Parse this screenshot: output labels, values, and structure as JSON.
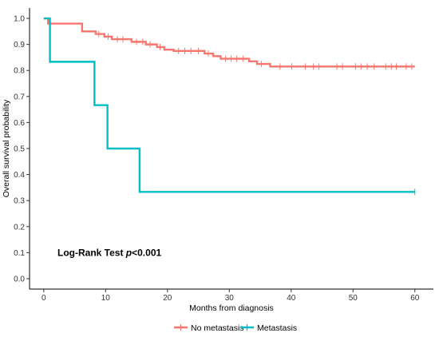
{
  "chart_data": {
    "type": "line",
    "subtype": "kaplan-meier-step",
    "ylabel": "Overall survival probability",
    "xlabel": "Months from diagnosis",
    "x_ticks": [
      0,
      10,
      20,
      30,
      40,
      50,
      60
    ],
    "y_ticks": [
      "0.0",
      "0.1",
      "0.2",
      "0.3",
      "0.4",
      "0.5",
      "0.6",
      "0.7",
      "0.8",
      "0.9",
      "1.0"
    ],
    "xlim": [
      -2.3,
      63
    ],
    "ylim": [
      -0.04,
      1.04
    ],
    "grid": false,
    "annotation": {
      "prefix": "Log-Rank Test ",
      "italic": "p",
      "suffix": "<0.001"
    },
    "legend_position": "bottom",
    "series": [
      {
        "name": "No metastasis",
        "color": "#F8766D",
        "steps": [
          [
            0,
            1.0
          ],
          [
            0.7,
            0.98
          ],
          [
            6.2,
            0.95
          ],
          [
            8.4,
            0.94
          ],
          [
            9.8,
            0.93
          ],
          [
            11.0,
            0.92
          ],
          [
            14.2,
            0.91
          ],
          [
            16.5,
            0.9
          ],
          [
            18.3,
            0.89
          ],
          [
            19.5,
            0.88
          ],
          [
            21.0,
            0.875
          ],
          [
            26.0,
            0.865
          ],
          [
            27.4,
            0.855
          ],
          [
            28.6,
            0.845
          ],
          [
            33.2,
            0.835
          ],
          [
            34.5,
            0.825
          ],
          [
            36.6,
            0.815
          ],
          [
            60,
            0.815
          ]
        ],
        "censored": [
          [
            8.9,
            0.94
          ],
          [
            10.4,
            0.93
          ],
          [
            11.9,
            0.92
          ],
          [
            12.8,
            0.92
          ],
          [
            15.0,
            0.91
          ],
          [
            16.0,
            0.91
          ],
          [
            17.2,
            0.9
          ],
          [
            18.8,
            0.89
          ],
          [
            21.8,
            0.875
          ],
          [
            22.8,
            0.875
          ],
          [
            23.8,
            0.875
          ],
          [
            25.0,
            0.875
          ],
          [
            26.6,
            0.865
          ],
          [
            29.4,
            0.845
          ],
          [
            30.3,
            0.845
          ],
          [
            31.2,
            0.845
          ],
          [
            32.2,
            0.845
          ],
          [
            35.2,
            0.825
          ],
          [
            38.2,
            0.815
          ],
          [
            40.1,
            0.815
          ],
          [
            42.3,
            0.815
          ],
          [
            43.6,
            0.815
          ],
          [
            44.5,
            0.815
          ],
          [
            47.4,
            0.815
          ],
          [
            48.3,
            0.815
          ],
          [
            50.4,
            0.815
          ],
          [
            51.3,
            0.815
          ],
          [
            52.3,
            0.815
          ],
          [
            53.4,
            0.815
          ],
          [
            55.3,
            0.815
          ],
          [
            56.2,
            0.815
          ],
          [
            57.0,
            0.815
          ],
          [
            58.6,
            0.815
          ],
          [
            59.5,
            0.815
          ]
        ]
      },
      {
        "name": "Metastasis",
        "color": "#00BFC4",
        "steps": [
          [
            0,
            1.0
          ],
          [
            1.0,
            0.8333
          ],
          [
            8.2,
            0.6667
          ],
          [
            10.3,
            0.5
          ],
          [
            15.5,
            0.3333
          ],
          [
            60,
            0.3333
          ]
        ],
        "censored": [
          [
            60,
            0.3333
          ]
        ]
      }
    ]
  }
}
